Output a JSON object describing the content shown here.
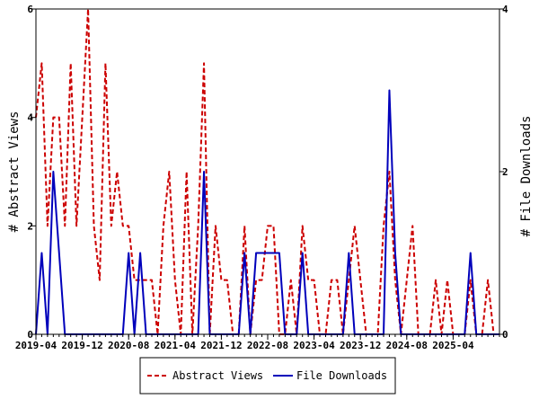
{
  "chart_data": {
    "type": "line",
    "x_ticks": [
      "2019-04",
      "2019-12",
      "2020-08",
      "2021-04",
      "2021-12",
      "2022-08",
      "2023-04",
      "2023-12",
      "2024-08",
      "2025-04"
    ],
    "y_left": {
      "label": "# Abstract Views",
      "ticks": [
        "0",
        "2",
        "4",
        "6"
      ],
      "min": 0,
      "max": 6
    },
    "y_right": {
      "label": "# File Downloads",
      "ticks": [
        "0",
        "2",
        "4"
      ],
      "min": 0,
      "max": 4
    },
    "legend_position": "bottom-center",
    "series": [
      {
        "name": "Abstract Views",
        "axis": "left",
        "color": "#cc0000",
        "style": "dashed",
        "values": [
          4,
          5,
          2,
          4,
          4,
          2,
          5,
          2,
          4,
          6,
          2,
          1,
          5,
          2,
          3,
          2,
          2,
          1,
          1,
          1,
          1,
          0,
          2,
          3,
          1,
          0,
          3,
          0,
          2,
          5,
          0,
          2,
          1,
          1,
          0,
          0,
          2,
          0,
          1,
          1,
          2,
          2,
          0,
          0,
          1,
          0,
          2,
          1,
          1,
          0,
          0,
          1,
          1,
          0,
          1,
          2,
          1,
          0,
          0,
          0,
          2,
          3,
          1,
          0,
          1,
          2,
          0,
          0,
          0,
          1,
          0,
          1,
          0,
          0,
          0,
          1,
          0,
          0,
          1,
          0,
          0
        ]
      },
      {
        "name": "File Downloads",
        "axis": "right",
        "color": "#0000bb",
        "style": "solid",
        "values": [
          0,
          1,
          0,
          2,
          1,
          0,
          0,
          0,
          0,
          0,
          0,
          0,
          0,
          0,
          0,
          0,
          1,
          0,
          1,
          0,
          0,
          0,
          0,
          0,
          0,
          0,
          0,
          0,
          0,
          2,
          0,
          0,
          0,
          0,
          0,
          0,
          1,
          0,
          1,
          1,
          1,
          1,
          1,
          0,
          0,
          0,
          1,
          0,
          0,
          0,
          0,
          0,
          0,
          0,
          1,
          0,
          0,
          0,
          0,
          0,
          0,
          3,
          1,
          0,
          0,
          0,
          0,
          0,
          0,
          0,
          0,
          0,
          0,
          0,
          0,
          1,
          0,
          0,
          0,
          0,
          0
        ]
      }
    ]
  }
}
